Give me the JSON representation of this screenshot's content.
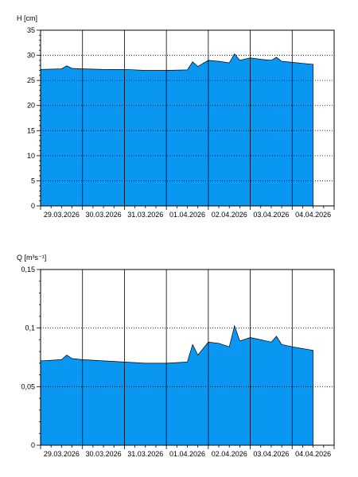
{
  "colors": {
    "fill": "#0a97f2",
    "line": "#000000",
    "grid": "#000000",
    "background": "#ffffff"
  },
  "chart_data": [
    {
      "type": "area",
      "ylabel": "H [cm]",
      "ylim": [
        0,
        35
      ],
      "xlim": [
        "2026-03-29T00:00",
        "2026-04-05T00:00"
      ],
      "yticks": [
        0,
        5,
        10,
        15,
        20,
        25,
        30,
        35
      ],
      "ytick_labels": [
        "0",
        "5",
        "10",
        "15",
        "20",
        "25",
        "30",
        "35"
      ],
      "xtick_labels": [
        "29.03.2026",
        "30.03.2026",
        "31.03.2026",
        "01.04.2026",
        "02.04.2026",
        "03.04.2026",
        "04.04.2026"
      ],
      "grid": {
        "vertical": "solid",
        "horizontal": "dotted"
      },
      "x": [
        "2026-03-29T00:00",
        "2026-03-29T12:00",
        "2026-03-29T15:00",
        "2026-03-29T18:00",
        "2026-03-30T00:00",
        "2026-03-30T12:00",
        "2026-03-31T00:00",
        "2026-03-31T12:00",
        "2026-04-01T00:00",
        "2026-04-01T12:00",
        "2026-04-01T15:00",
        "2026-04-01T18:00",
        "2026-04-02T00:00",
        "2026-04-02T06:00",
        "2026-04-02T12:00",
        "2026-04-02T15:00",
        "2026-04-02T18:00",
        "2026-04-03T00:00",
        "2026-04-03T06:00",
        "2026-04-03T12:00",
        "2026-04-03T15:00",
        "2026-04-03T18:00",
        "2026-04-04T00:00",
        "2026-04-04T12:00"
      ],
      "y": [
        27.2,
        27.3,
        27.9,
        27.4,
        27.3,
        27.2,
        27.2,
        27.0,
        27.0,
        27.1,
        28.7,
        27.8,
        29.0,
        28.8,
        28.5,
        30.3,
        29.0,
        29.5,
        29.2,
        29.0,
        29.6,
        28.8,
        28.6,
        28.2
      ]
    },
    {
      "type": "area",
      "ylabel": "Q [m³s⁻¹]",
      "ylim": [
        0,
        0.15
      ],
      "xlim": [
        "2026-03-29T00:00",
        "2026-04-05T00:00"
      ],
      "yticks": [
        0,
        0.05,
        0.1,
        0.15
      ],
      "ytick_labels": [
        "0",
        "0,05",
        "0,1",
        "0,15"
      ],
      "xtick_labels": [
        "29.03.2026",
        "30.03.2026",
        "31.03.2026",
        "01.04.2026",
        "02.04.2026",
        "03.04.2026",
        "04.04.2026"
      ],
      "grid": {
        "vertical": "solid",
        "horizontal": "dotted"
      },
      "x": [
        "2026-03-29T00:00",
        "2026-03-29T12:00",
        "2026-03-29T15:00",
        "2026-03-29T18:00",
        "2026-03-30T00:00",
        "2026-03-30T12:00",
        "2026-03-31T00:00",
        "2026-03-31T12:00",
        "2026-04-01T00:00",
        "2026-04-01T12:00",
        "2026-04-01T15:00",
        "2026-04-01T18:00",
        "2026-04-02T00:00",
        "2026-04-02T06:00",
        "2026-04-02T12:00",
        "2026-04-02T15:00",
        "2026-04-02T18:00",
        "2026-04-03T00:00",
        "2026-04-03T06:00",
        "2026-04-03T12:00",
        "2026-04-03T15:00",
        "2026-04-03T18:00",
        "2026-04-04T00:00",
        "2026-04-04T12:00"
      ],
      "y": [
        0.072,
        0.073,
        0.077,
        0.074,
        0.073,
        0.072,
        0.071,
        0.07,
        0.07,
        0.071,
        0.086,
        0.077,
        0.088,
        0.087,
        0.084,
        0.102,
        0.089,
        0.092,
        0.09,
        0.088,
        0.093,
        0.086,
        0.084,
        0.081
      ]
    }
  ]
}
